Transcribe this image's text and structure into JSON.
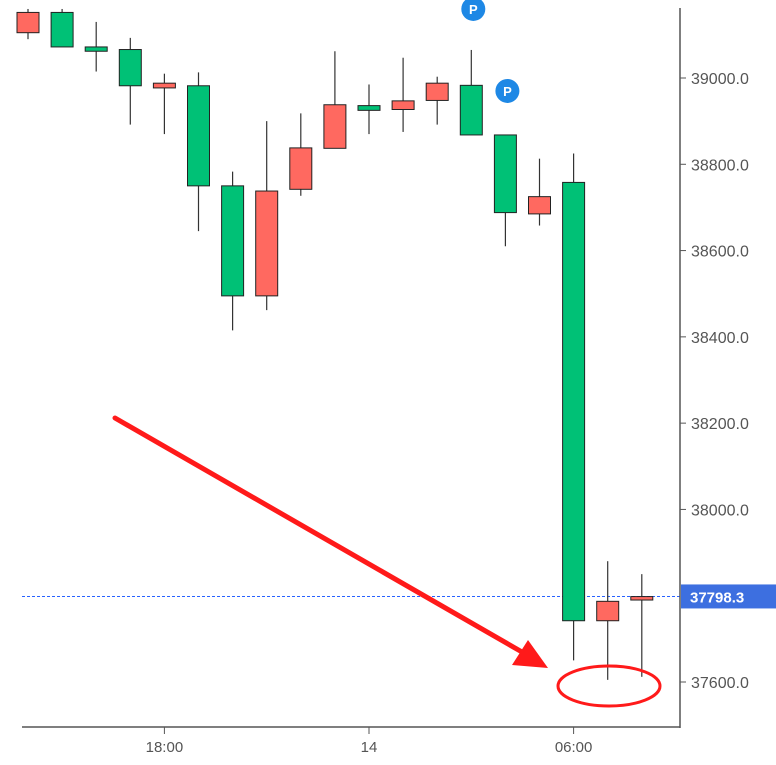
{
  "chart_data": {
    "type": "candlestick",
    "colors": {
      "up": "#00c176",
      "down": "#ff6960",
      "wick": "#333333",
      "price_line": "#2962ff",
      "marker": "#1e88e5",
      "annotation": "#ff1a1a"
    },
    "ylim": [
      37540,
      39200
    ],
    "y_ticks": [
      {
        "value": 39000,
        "label": "39000.0"
      },
      {
        "value": 38800,
        "label": "38800.0"
      },
      {
        "value": 38600,
        "label": "38600.0"
      },
      {
        "value": 38400,
        "label": "38400.0"
      },
      {
        "value": 38200,
        "label": "38200.0"
      },
      {
        "value": 38000,
        "label": "38000.0"
      },
      {
        "value": 37600,
        "label": "37600.0"
      }
    ],
    "x_ticks": [
      {
        "index": 4,
        "label": "18:00"
      },
      {
        "index": 10,
        "label": "14"
      },
      {
        "index": 16,
        "label": "06:00"
      }
    ],
    "current_price": {
      "value": 37798.3,
      "label": "37798.3"
    },
    "markers": [
      {
        "index": 13,
        "value": 39160,
        "label": "P"
      },
      {
        "index": 14,
        "value": 38970,
        "label": "P"
      }
    ],
    "candles": [
      {
        "index": 0,
        "top": 39152,
        "bottom": 39105,
        "high": 39160,
        "low": 39090,
        "color": "down"
      },
      {
        "index": 1,
        "top": 39152,
        "bottom": 39072,
        "high": 39160,
        "low": 39072,
        "color": "up"
      },
      {
        "index": 2,
        "top": 39072,
        "bottom": 39062,
        "high": 39130,
        "low": 39015,
        "color": "up"
      },
      {
        "index": 3,
        "top": 39066,
        "bottom": 38982,
        "high": 39093,
        "low": 38892,
        "color": "up"
      },
      {
        "index": 4,
        "top": 38988,
        "bottom": 38977,
        "high": 39010,
        "low": 38870,
        "color": "down"
      },
      {
        "index": 5,
        "top": 38982,
        "bottom": 38750,
        "high": 39013,
        "low": 38645,
        "color": "up"
      },
      {
        "index": 6,
        "top": 38750,
        "bottom": 38495,
        "high": 38783,
        "low": 38415,
        "color": "up"
      },
      {
        "index": 7,
        "top": 38738,
        "bottom": 38495,
        "high": 38900,
        "low": 38462,
        "color": "down"
      },
      {
        "index": 8,
        "top": 38838,
        "bottom": 38742,
        "high": 38918,
        "low": 38727,
        "color": "down"
      },
      {
        "index": 9,
        "top": 38938,
        "bottom": 38837,
        "high": 39062,
        "low": 38837,
        "color": "down"
      },
      {
        "index": 10,
        "top": 38936,
        "bottom": 38925,
        "high": 38985,
        "low": 38870,
        "color": "up"
      },
      {
        "index": 11,
        "top": 38947,
        "bottom": 38927,
        "high": 39047,
        "low": 38875,
        "color": "down"
      },
      {
        "index": 12,
        "top": 38988,
        "bottom": 38948,
        "high": 39003,
        "low": 38892,
        "color": "down"
      },
      {
        "index": 13,
        "top": 38983,
        "bottom": 38868,
        "high": 39065,
        "low": 38868,
        "color": "up"
      },
      {
        "index": 14,
        "top": 38868,
        "bottom": 38688,
        "high": 38868,
        "low": 38610,
        "color": "up"
      },
      {
        "index": 15,
        "top": 38725,
        "bottom": 38685,
        "high": 38813,
        "low": 38658,
        "color": "down"
      },
      {
        "index": 16,
        "top": 38758,
        "bottom": 37742,
        "high": 38825,
        "low": 37650,
        "color": "up"
      },
      {
        "index": 17,
        "top": 37787,
        "bottom": 37742,
        "high": 37880,
        "low": 37605,
        "color": "down"
      },
      {
        "index": 18,
        "top": 37798,
        "bottom": 37790,
        "high": 37850,
        "low": 37612,
        "color": "down"
      }
    ]
  }
}
